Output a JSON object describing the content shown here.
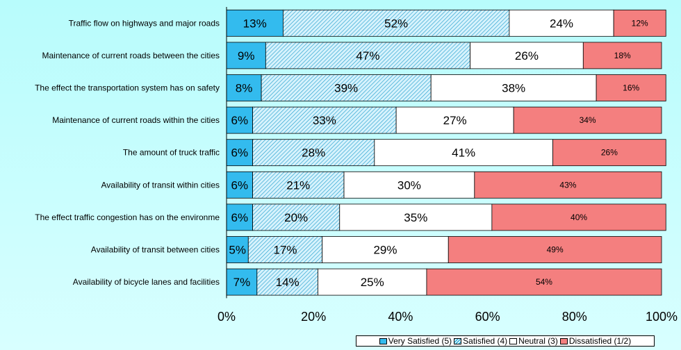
{
  "chart_data": {
    "type": "bar",
    "orientation": "horizontal",
    "stacked": true,
    "categories": [
      "Traffic flow on highways and major roads",
      "Maintenance of current roads between the cities",
      "The effect the transportation system has on safety",
      "Maintenance of current roads within the cities",
      "The amount of truck traffic",
      "Availability of transit within cities",
      "The effect traffic congestion has on the environme",
      "Availability of transit between cities",
      "Availability of bicycle lanes and facilities"
    ],
    "series": [
      {
        "name": "Very Satisfied (5)",
        "color": "#33bbee",
        "pattern": "solid",
        "values": [
          13,
          9,
          8,
          6,
          6,
          6,
          6,
          5,
          7
        ]
      },
      {
        "name": "Satisfied (4)",
        "color": "#aee4f7",
        "pattern": "hatched",
        "values": [
          52,
          47,
          39,
          33,
          28,
          21,
          20,
          17,
          14
        ]
      },
      {
        "name": "Neutral (3)",
        "color": "#ffffff",
        "pattern": "solid",
        "values": [
          24,
          26,
          38,
          27,
          41,
          30,
          35,
          29,
          25
        ]
      },
      {
        "name": "Dissatisfied (1/2)",
        "color": "#f47f7f",
        "pattern": "solid",
        "values": [
          12,
          18,
          16,
          34,
          26,
          43,
          40,
          49,
          54
        ]
      }
    ],
    "value_labels": [
      [
        "13%",
        "52%",
        "24%",
        "12%"
      ],
      [
        "9%",
        "47%",
        "26%",
        "18%"
      ],
      [
        "8%",
        "39%",
        "38%",
        "16%"
      ],
      [
        "6%",
        "33%",
        "27%",
        "34%"
      ],
      [
        "6%",
        "28%",
        "41%",
        "26%"
      ],
      [
        "6%",
        "21%",
        "30%",
        "43%"
      ],
      [
        "6%",
        "20%",
        "35%",
        "40%"
      ],
      [
        "5%",
        "17%",
        "29%",
        "49%"
      ],
      [
        "7%",
        "14%",
        "25%",
        "54%"
      ]
    ],
    "xlim": [
      0,
      100
    ],
    "x_ticks": [
      "0%",
      "20%",
      "40%",
      "60%",
      "80%",
      "100%"
    ],
    "grid": false,
    "legend_position": "bottom-right",
    "title": "",
    "xlabel": "",
    "ylabel": ""
  },
  "legend": {
    "items": [
      "Very Satisfied (5)",
      "Satisfied (4)",
      "Neutral (3)",
      "Dissatisfied (1/2)"
    ]
  }
}
